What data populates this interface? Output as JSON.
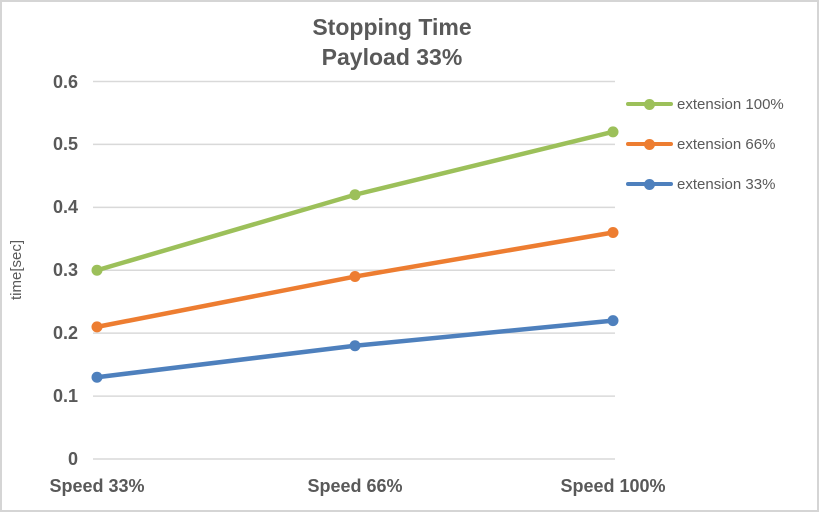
{
  "chart_data": {
    "type": "line",
    "title": "Stopping Time",
    "subtitle": "Payload 33%",
    "xlabel": "",
    "ylabel": "time[sec]",
    "categories": [
      "Speed 33%",
      "Speed 66%",
      "Speed 100%"
    ],
    "series": [
      {
        "name": "extension 100%",
        "color": "#9cc05a",
        "values": [
          0.3,
          0.42,
          0.52
        ]
      },
      {
        "name": "extension 66%",
        "color": "#ed7d31",
        "values": [
          0.21,
          0.29,
          0.36
        ]
      },
      {
        "name": "extension 33%",
        "color": "#4e80bd",
        "values": [
          0.13,
          0.18,
          0.22
        ]
      }
    ],
    "ylim": [
      0,
      0.6
    ],
    "ytick_step": 0.1,
    "ytick_labels": [
      "0",
      "0.1",
      "0.2",
      "0.3",
      "0.4",
      "0.5",
      "0.6"
    ],
    "grid": true,
    "legend_position": "right",
    "colors": {
      "text": "#595959",
      "gridline": "#d9d9d9",
      "frame_border": "#d5d5d5",
      "background": "#ffffff"
    }
  }
}
